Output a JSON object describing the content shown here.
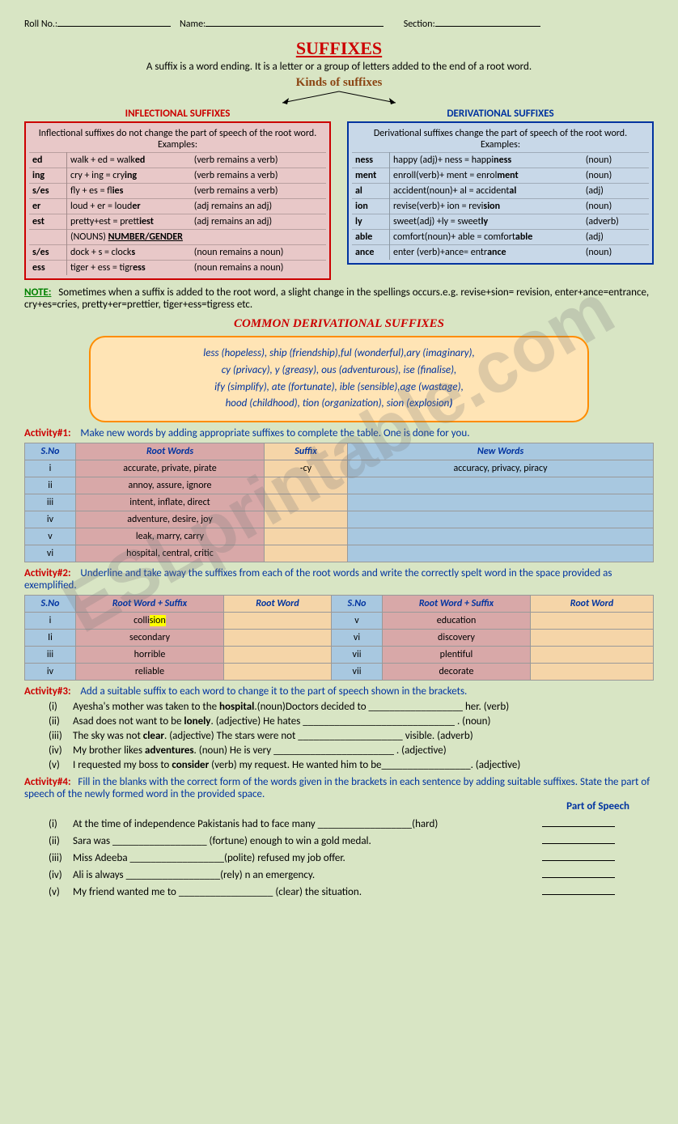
{
  "header": {
    "roll": "Roll No.:",
    "name": "Name:",
    "section": "Section:"
  },
  "title": "SUFFIXES",
  "subtitle": "A suffix is a word ending. It is a letter or a group of letters added to the end of a root word.",
  "kinds": "Kinds of suffixes",
  "left": {
    "title": "INFLECTIONAL SUFFIXES",
    "desc": "Inflectional suffixes do not change the part of speech of the root word.  Examples:",
    "rows": [
      [
        "ed",
        "walk + ed = walk<b>ed</b>",
        "(verb remains a verb)"
      ],
      [
        "ing",
        "cry + ing = cry<b>ing</b>",
        "(verb remains a verb)"
      ],
      [
        "s/es",
        "fly + es =   fl<b>ies</b>",
        "(verb remains a verb)"
      ],
      [
        "er",
        "loud + er = loud<b>er</b>",
        "(adj remains an adj)"
      ],
      [
        "est",
        "pretty+est = prett<b>iest</b>",
        "(adj remains an adj)"
      ],
      [
        "",
        "(NOUNS)   <b><u>NUMBER/GENDER</u></b>",
        ""
      ],
      [
        "s/es",
        "dock + s = clock<b>s</b>",
        "(noun remains a noun)"
      ],
      [
        "ess",
        "tiger + ess = tigr<b>ess</b>",
        "(noun remains a noun)"
      ]
    ]
  },
  "right": {
    "title": "DERIVATIONAL SUFFIXES",
    "desc": "Derivational suffixes change the part of speech of the root word. Examples:",
    "rows": [
      [
        "ness",
        "happy (adj)+ ness = happi<b>ness</b>",
        "(noun)"
      ],
      [
        "ment",
        "enroll(verb)+ ment = enrol<b>ment</b>",
        "(noun)"
      ],
      [
        "al",
        "accident(noun)+ al = accident<b>al</b>",
        "(adj)"
      ],
      [
        "ion",
        "revise(verb)+ ion = revi<b>sion</b>",
        "(noun)"
      ],
      [
        "ly",
        "sweet(adj) +ly = sweet<b>ly</b>",
        "(adverb)"
      ],
      [
        "able",
        "comfort(noun)+ able = comfort<b>able</b>",
        "(adj)"
      ],
      [
        "ance",
        "enter (verb)+ance= entr<b>ance</b>",
        "(noun)"
      ]
    ]
  },
  "noteLabel": "NOTE:",
  "note": "Sometimes when a suffix is added to the root word, a slight change in the spellings occurs.e.g. revise+sion= revision, enter+ance=entrance, cry+es=cries, pretty+er=prettier, tiger+ess=tigress etc.",
  "cds": "COMMON DERIVATIONAL SUFFIXES",
  "common": [
    "less (hopeless), ship (friendship),ful (wonderful),ary (imaginary),",
    "cy (privacy), y (greasy), ous (adventurous), ise (finalise),",
    "ify (simplify), ate (fortunate), ible (sensible),age (wastage),",
    "hood (childhood), tion (organization), sion (explosion<b>)</b>"
  ],
  "a1": {
    "label": "Activity#1:",
    "text": "Make new words by adding appropriate suffixes to complete the table. One is done for you.",
    "head": [
      "S.No",
      "Root Words",
      "Suffix",
      "New Words"
    ],
    "rows": [
      [
        "i",
        "accurate, private, pirate",
        "-cy",
        "accuracy, privacy, piracy"
      ],
      [
        "ii",
        "annoy, assure, ignore",
        "",
        ""
      ],
      [
        "iii",
        "intent, inflate, direct",
        "",
        ""
      ],
      [
        "iv",
        "adventure, desire, joy",
        "",
        ""
      ],
      [
        "v",
        "leak, marry, carry",
        "",
        ""
      ],
      [
        "vi",
        "hospital, central, critic",
        "",
        ""
      ]
    ]
  },
  "a2": {
    "label": "Activity#2:",
    "text": "Underline and take away the suffixes from each of the root words and write the correctly spelt word in the space provided as exemplified.",
    "head": [
      "S.No",
      "Root Word + Suffix",
      "Root Word",
      "S.No",
      "Root Word + Suffix",
      "Root Word"
    ],
    "rows": [
      [
        "i",
        "colli<span class=hl>sion</span>",
        "",
        "v",
        "education",
        ""
      ],
      [
        "Ii",
        "secondary",
        "",
        "vi",
        "discovery",
        ""
      ],
      [
        "iii",
        "horrible",
        "",
        "vii",
        "plentiful",
        ""
      ],
      [
        "iv",
        "reliable",
        "",
        "vii",
        "decorate",
        ""
      ]
    ]
  },
  "a3": {
    "label": "Activity#3:",
    "text": "Add a suitable suffix to each word to change it to the part of speech shown in the brackets.",
    "items": [
      "Ayesha's mother was taken to the <b>hospital</b>.(noun)Doctors decided to __________________ her.   (verb)",
      "Asad does not want to be <b>lonely</b>. (adjective) He hates _____________________________ .        (noun)",
      "The sky was not <b>clear</b>. (adjective) The stars were not ____________________ visible.      (adverb)",
      "My brother likes <b>adventures</b>. (noun) He is very _______________________ .                  (adjective)",
      "I requested my boss to <b>consider</b> (verb) my request. He wanted him to be_________________.  (adjective)"
    ]
  },
  "a4": {
    "label": "Activity#4:",
    "text": "Fill in the blanks with the correct form of the words given in the brackets in each sentence by adding suitable suffixes. State the part of speech of the newly formed word in the provided space.",
    "posh": "Part of Speech",
    "items": [
      "At the time of independence Pakistanis had to face many __________________(hard)",
      "Sara was __________________ (fortune) enough to win a gold medal.",
      "Miss Adeeba __________________(polite) refused my job offer.",
      "Ali is always __________________(rely) n an emergency.",
      "My friend wanted me to __________________ (clear) the situation."
    ]
  },
  "watermark": "ESLprintable.com",
  "romans": [
    "(i)",
    "(ii)",
    "(iii)",
    "(iv)",
    "(v)"
  ]
}
